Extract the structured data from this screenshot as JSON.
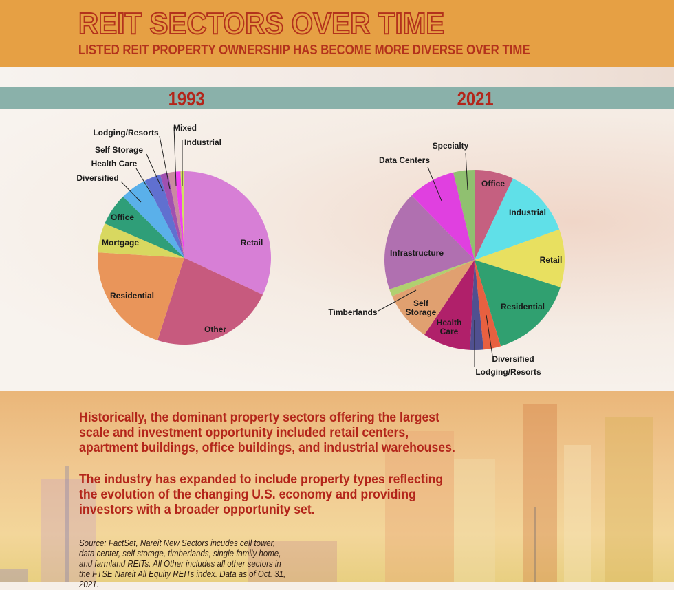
{
  "header": {
    "title": "REIT SECTORS OVER TIME",
    "subtitle": "LISTED REIT PROPERTY OWNERSHIP HAS BECOME MORE DIVERSE OVER TIME"
  },
  "colors": {
    "header_bg": "#e6a044",
    "band": "#8ab1aa",
    "accent_text": "#b3251a"
  },
  "chart_data": [
    {
      "type": "pie",
      "title": "1993",
      "categories": [
        "Retail",
        "Other",
        "Residential",
        "Mortgage",
        "Office",
        "Diversified",
        "Health Care",
        "Self Storage",
        "Lodging/Resorts",
        "Mixed",
        "Industrial"
      ],
      "values": [
        32,
        23,
        21,
        5.5,
        6,
        5,
        3,
        1.5,
        1.2,
        1.1,
        0.7
      ],
      "colors": [
        "#d77fd6",
        "#c75a7e",
        "#e9955a",
        "#d8d860",
        "#2f9e78",
        "#5ab0ea",
        "#6070d0",
        "#a050b0",
        "#c98aa0",
        "#f040f0",
        "#d0e060"
      ]
    },
    {
      "type": "pie",
      "title": "2021",
      "categories": [
        "Office",
        "Industrial",
        "Retail",
        "Residential",
        "Diversified",
        "Lodging/Resorts",
        "Health Care",
        "Self Storage",
        "Timberlands",
        "Infrastructure",
        "Data Centers",
        "Specialty"
      ],
      "values": [
        7,
        12.5,
        10.4,
        15.4,
        3.1,
        2.4,
        8.6,
        9,
        1.3,
        18,
        8.5,
        3.8
      ],
      "colors": [
        "#c56080",
        "#60e0e8",
        "#e8e060",
        "#30a070",
        "#e86040",
        "#505090",
        "#b0206a",
        "#e0a070",
        "#b0d070",
        "#b070b0",
        "#e040e0",
        "#90c070"
      ]
    }
  ],
  "body": {
    "paragraph1": "Historically, the dominant property sectors offering the largest scale and investment opportunity included retail centers, apartment buildings, office buildings, and industrial warehouses.",
    "paragraph2": "The industry has expanded to include property types reflecting the evolution of the changing U.S. economy and providing investors with a broader opportunity set.",
    "source": "Source: FactSet, Nareit New Sectors incudes cell tower, data center, self storage, timberlands, single family home, and farmland REITs. All Other includes all other sectors in the FTSE Nareit All Equity REITs index. Data as of Oct. 31, 2021."
  }
}
